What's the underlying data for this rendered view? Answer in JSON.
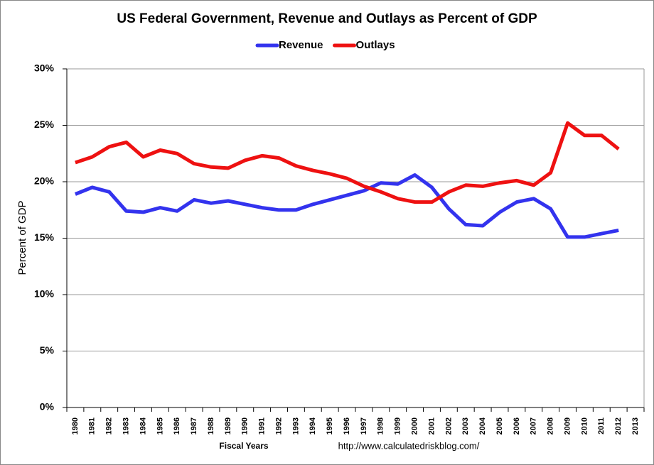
{
  "chart_data": {
    "type": "line",
    "title": "US Federal Government, Revenue and Outlays as Percent of GDP",
    "y_label": "Percent of GDP",
    "x_label": "Fiscal Years",
    "source": "http://www.calculatedriskblog.com/",
    "categories": [
      "1980",
      "1981",
      "1982",
      "1983",
      "1984",
      "1985",
      "1986",
      "1987",
      "1988",
      "1989",
      "1990",
      "1991",
      "1992",
      "1993",
      "1994",
      "1995",
      "1996",
      "1997",
      "1998",
      "1999",
      "2000",
      "2001",
      "2002",
      "2003",
      "2004",
      "2005",
      "2006",
      "2007",
      "2008",
      "2009",
      "2010",
      "2011",
      "2012",
      "2013"
    ],
    "series": [
      {
        "name": "Revenue",
        "color": "#3333ee",
        "values": [
          18.9,
          19.5,
          19.1,
          17.4,
          17.3,
          17.7,
          17.4,
          18.4,
          18.1,
          18.3,
          18.0,
          17.7,
          17.5,
          17.5,
          18.0,
          18.4,
          18.8,
          19.2,
          19.9,
          19.8,
          20.6,
          19.5,
          17.6,
          16.2,
          16.1,
          17.3,
          18.2,
          18.5,
          17.6,
          15.1,
          15.1,
          15.4,
          15.7,
          null
        ]
      },
      {
        "name": "Outlays",
        "color": "#ee1111",
        "values": [
          21.7,
          22.2,
          23.1,
          23.5,
          22.2,
          22.8,
          22.5,
          21.6,
          21.3,
          21.2,
          21.9,
          22.3,
          22.1,
          21.4,
          21.0,
          20.7,
          20.3,
          19.6,
          19.1,
          18.5,
          18.2,
          18.2,
          19.1,
          19.7,
          19.6,
          19.9,
          20.1,
          19.7,
          20.8,
          25.2,
          24.1,
          24.1,
          22.9,
          null
        ]
      }
    ],
    "ylim": [
      0,
      30
    ],
    "yticks": [
      {
        "value": 0,
        "label": "0%"
      },
      {
        "value": 5,
        "label": "5%"
      },
      {
        "value": 10,
        "label": "10%"
      },
      {
        "value": 15,
        "label": "15%"
      },
      {
        "value": 20,
        "label": "20%"
      },
      {
        "value": 25,
        "label": "25%"
      },
      {
        "value": 30,
        "label": "30%"
      }
    ],
    "grid": true,
    "legend": "top"
  }
}
